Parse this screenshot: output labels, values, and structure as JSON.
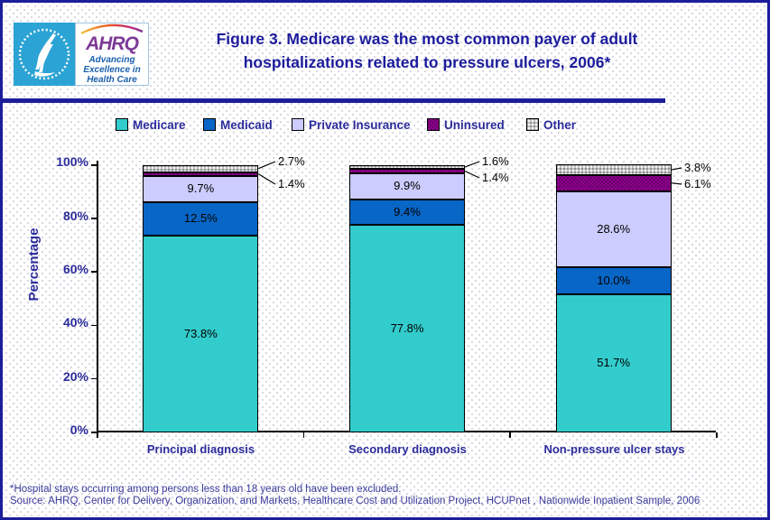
{
  "header": {
    "title_line1": "Figure 3. Medicare was the most common payer of adult",
    "title_line2": "hospitalizations related to pressure ulcers, 2006*",
    "logo": {
      "ahrq_acronym": "AHRQ",
      "tagline_line1": "Advancing",
      "tagline_line2": "Excellence in",
      "tagline_line3": "Health Care"
    }
  },
  "chart_data": {
    "type": "bar",
    "stacked": true,
    "title": "Figure 3. Medicare was the most common payer of adult hospitalizations related to pressure ulcers, 2006*",
    "categories": [
      "Principal diagnosis",
      "Secondary diagnosis",
      "Non-pressure ulcer stays"
    ],
    "series": [
      {
        "name": "Medicare",
        "color": "#33CCCC",
        "values": [
          73.8,
          77.8,
          51.7
        ]
      },
      {
        "name": "Medicaid",
        "color": "#0866C6",
        "values": [
          12.5,
          9.4,
          10.0
        ]
      },
      {
        "name": "Private Insurance",
        "color": "#CCCCFF",
        "values": [
          9.7,
          9.9,
          28.6
        ]
      },
      {
        "name": "Uninsured",
        "color": "#990099",
        "values": [
          1.4,
          1.4,
          6.1
        ]
      },
      {
        "name": "Other",
        "color": "#C6C6C6",
        "values": [
          2.7,
          1.6,
          3.8
        ]
      }
    ],
    "xlabel": "",
    "ylabel": "Percentage",
    "ylim": [
      0,
      100
    ],
    "ytick_labels": [
      "0%",
      "20%",
      "40%",
      "60%",
      "80%",
      "100%"
    ],
    "grid": false,
    "legend_position": "top",
    "value_label_format": "percent_one_decimal"
  },
  "footnotes": {
    "line1": "*Hospital stays occurring among persons less than 18 years old have been excluded.",
    "line2": "Source: AHRQ, Center for Delivery, Organization, and Markets, Healthcare Cost and Utilization Project, HCUPnet , Nationwide Inpatient Sample, 2006"
  }
}
